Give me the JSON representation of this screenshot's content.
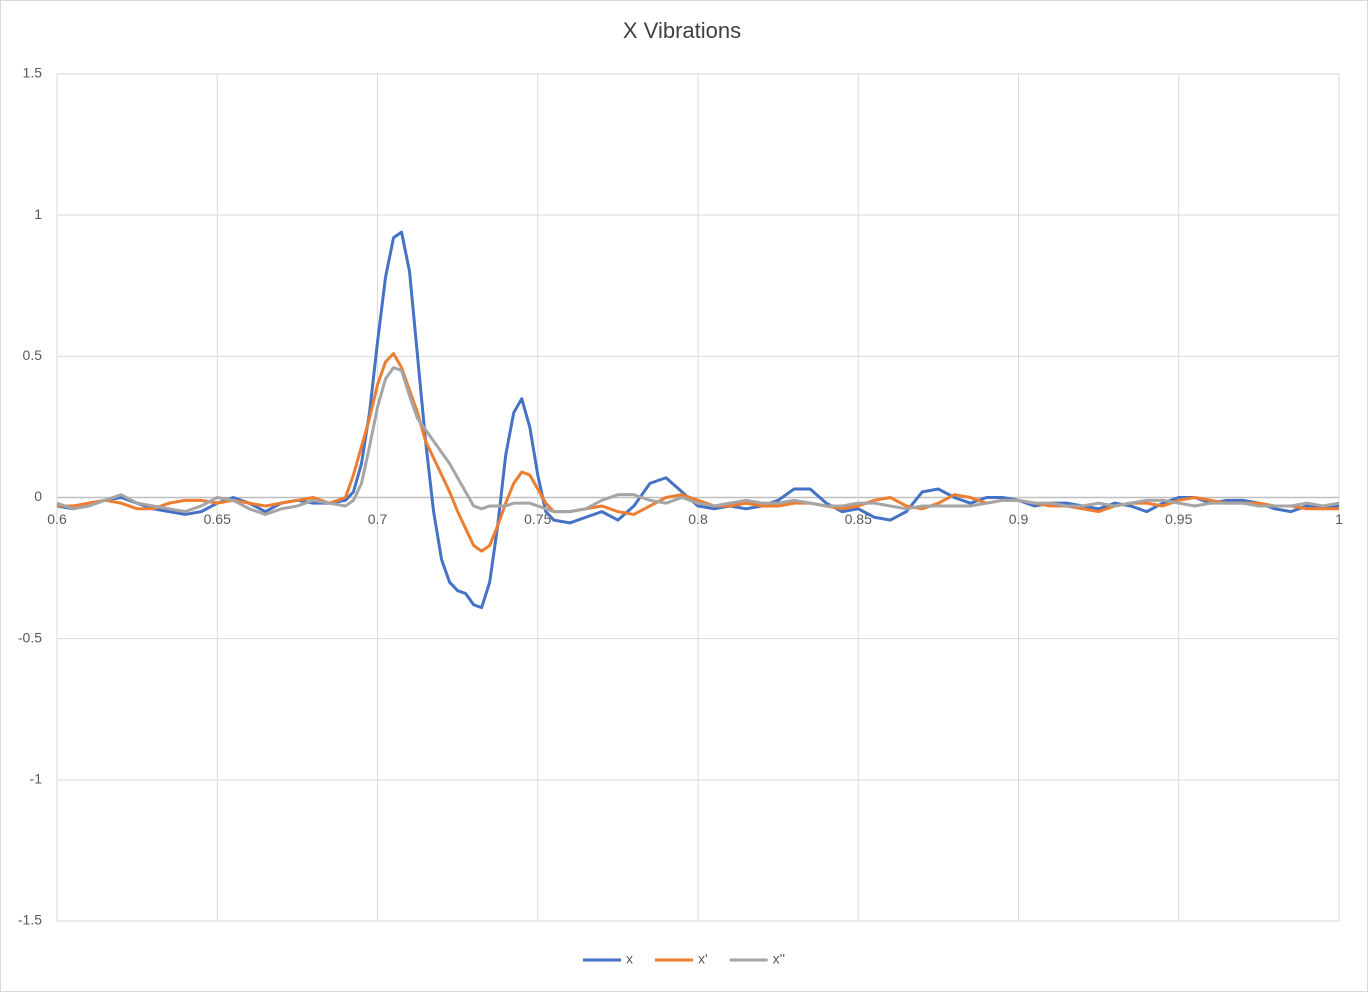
{
  "chart_data": {
    "type": "line",
    "title": "X Vibrations",
    "x": [
      0.6,
      0.605,
      0.61,
      0.615,
      0.62,
      0.625,
      0.63,
      0.635,
      0.64,
      0.645,
      0.65,
      0.655,
      0.66,
      0.665,
      0.67,
      0.675,
      0.68,
      0.685,
      0.69,
      0.6925,
      0.695,
      0.6975,
      0.7,
      0.7025,
      0.705,
      0.7075,
      0.71,
      0.7125,
      0.715,
      0.7175,
      0.72,
      0.7225,
      0.725,
      0.7275,
      0.73,
      0.7325,
      0.735,
      0.7375,
      0.74,
      0.7425,
      0.745,
      0.7475,
      0.75,
      0.7525,
      0.755,
      0.76,
      0.765,
      0.77,
      0.775,
      0.78,
      0.785,
      0.79,
      0.795,
      0.8,
      0.805,
      0.81,
      0.815,
      0.82,
      0.825,
      0.83,
      0.835,
      0.84,
      0.845,
      0.85,
      0.855,
      0.86,
      0.865,
      0.87,
      0.875,
      0.88,
      0.885,
      0.89,
      0.895,
      0.9,
      0.905,
      0.91,
      0.915,
      0.92,
      0.925,
      0.93,
      0.935,
      0.94,
      0.945,
      0.95,
      0.955,
      0.96,
      0.965,
      0.97,
      0.975,
      0.98,
      0.985,
      0.99,
      0.995,
      1
    ],
    "series": [
      {
        "name": "x",
        "color": "#4472c4",
        "values": [
          -0.03,
          -0.04,
          -0.02,
          -0.01,
          0.0,
          -0.02,
          -0.04,
          -0.05,
          -0.06,
          -0.05,
          -0.02,
          0.0,
          -0.02,
          -0.05,
          -0.02,
          -0.01,
          -0.02,
          -0.02,
          -0.01,
          0.02,
          0.12,
          0.3,
          0.55,
          0.78,
          0.92,
          0.94,
          0.8,
          0.5,
          0.2,
          -0.05,
          -0.22,
          -0.3,
          -0.33,
          -0.34,
          -0.38,
          -0.39,
          -0.3,
          -0.1,
          0.15,
          0.3,
          0.35,
          0.25,
          0.08,
          -0.05,
          -0.08,
          -0.09,
          -0.07,
          -0.05,
          -0.08,
          -0.03,
          0.05,
          0.07,
          0.02,
          -0.03,
          -0.04,
          -0.03,
          -0.04,
          -0.03,
          -0.01,
          0.03,
          0.03,
          -0.02,
          -0.05,
          -0.04,
          -0.07,
          -0.08,
          -0.05,
          0.02,
          0.03,
          0.0,
          -0.02,
          0.0,
          0.0,
          -0.01,
          -0.03,
          -0.02,
          -0.02,
          -0.03,
          -0.04,
          -0.02,
          -0.03,
          -0.05,
          -0.02,
          0.0,
          0.0,
          -0.02,
          -0.01,
          -0.01,
          -0.02,
          -0.04,
          -0.05,
          -0.03,
          -0.04,
          -0.03
        ]
      },
      {
        "name": "x'",
        "color": "#ed7d31",
        "values": [
          -0.03,
          -0.03,
          -0.02,
          -0.01,
          -0.02,
          -0.04,
          -0.04,
          -0.02,
          -0.01,
          -0.01,
          -0.02,
          -0.01,
          -0.02,
          -0.03,
          -0.02,
          -0.01,
          0.0,
          -0.02,
          0.0,
          0.08,
          0.18,
          0.28,
          0.4,
          0.48,
          0.51,
          0.46,
          0.38,
          0.3,
          0.2,
          0.14,
          0.08,
          0.02,
          -0.05,
          -0.11,
          -0.17,
          -0.19,
          -0.17,
          -0.1,
          -0.02,
          0.05,
          0.09,
          0.08,
          0.03,
          -0.02,
          -0.05,
          -0.05,
          -0.04,
          -0.03,
          -0.05,
          -0.06,
          -0.03,
          0.0,
          0.01,
          -0.01,
          -0.03,
          -0.03,
          -0.02,
          -0.03,
          -0.03,
          -0.02,
          -0.02,
          -0.03,
          -0.04,
          -0.03,
          -0.01,
          0.0,
          -0.03,
          -0.04,
          -0.02,
          0.01,
          0.0,
          -0.02,
          -0.01,
          -0.01,
          -0.02,
          -0.03,
          -0.03,
          -0.04,
          -0.05,
          -0.03,
          -0.02,
          -0.02,
          -0.03,
          -0.01,
          0.0,
          -0.01,
          -0.02,
          -0.02,
          -0.02,
          -0.03,
          -0.03,
          -0.04,
          -0.04,
          -0.04
        ]
      },
      {
        "name": "x''",
        "color": "#a5a5a5",
        "values": [
          -0.02,
          -0.04,
          -0.03,
          -0.01,
          0.01,
          -0.02,
          -0.03,
          -0.04,
          -0.05,
          -0.03,
          0.0,
          -0.01,
          -0.04,
          -0.06,
          -0.04,
          -0.03,
          -0.01,
          -0.02,
          -0.03,
          -0.01,
          0.05,
          0.18,
          0.32,
          0.42,
          0.46,
          0.45,
          0.36,
          0.28,
          0.24,
          0.2,
          0.16,
          0.12,
          0.07,
          0.02,
          -0.03,
          -0.04,
          -0.03,
          -0.03,
          -0.03,
          -0.02,
          -0.02,
          -0.02,
          -0.03,
          -0.04,
          -0.05,
          -0.05,
          -0.04,
          -0.01,
          0.01,
          0.01,
          -0.01,
          -0.02,
          0.0,
          -0.02,
          -0.03,
          -0.02,
          -0.01,
          -0.02,
          -0.02,
          -0.01,
          -0.02,
          -0.03,
          -0.03,
          -0.02,
          -0.02,
          -0.03,
          -0.04,
          -0.03,
          -0.03,
          -0.03,
          -0.03,
          -0.02,
          -0.01,
          -0.01,
          -0.02,
          -0.02,
          -0.03,
          -0.03,
          -0.02,
          -0.03,
          -0.02,
          -0.01,
          -0.01,
          -0.02,
          -0.03,
          -0.02,
          -0.02,
          -0.02,
          -0.03,
          -0.03,
          -0.03,
          -0.02,
          -0.03,
          -0.02
        ]
      }
    ],
    "xlim": [
      0.6,
      1
    ],
    "xticks": [
      0.6,
      0.65,
      0.7,
      0.75,
      0.8,
      0.85,
      0.9,
      0.95,
      1
    ],
    "ylim": [
      -1.5,
      1.5
    ],
    "yticks": [
      1.5,
      1,
      0.5,
      0,
      -0.5,
      -1,
      -1.5
    ],
    "grid": true,
    "legend": "bottom"
  }
}
